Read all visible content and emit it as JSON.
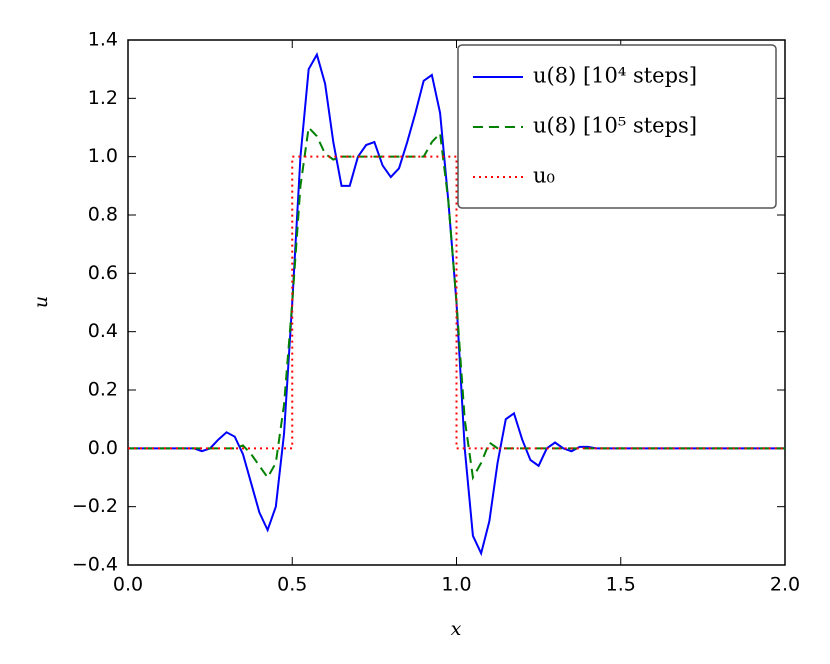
{
  "chart_data": {
    "type": "line",
    "xlabel": "x",
    "ylabel": "u",
    "x": [
      0,
      0.2,
      0.225,
      0.25,
      0.275,
      0.3,
      0.325,
      0.35,
      0.375,
      0.4,
      0.425,
      0.45,
      0.475,
      0.5,
      0.525,
      0.55,
      0.575,
      0.6,
      0.625,
      0.65,
      0.675,
      0.7,
      0.725,
      0.75,
      0.775,
      0.8,
      0.825,
      0.85,
      0.875,
      0.9,
      0.925,
      0.95,
      0.975,
      1.0,
      1.025,
      1.05,
      1.075,
      1.1,
      1.125,
      1.15,
      1.175,
      1.2,
      1.225,
      1.25,
      1.275,
      1.3,
      1.325,
      1.35,
      1.375,
      1.4,
      1.425,
      2.0
    ],
    "series": [
      {
        "name": "u(8) [10⁴  steps]",
        "color": "#0000ff",
        "linestyle": "solid",
        "values": [
          0,
          0,
          -0.01,
          0,
          0.03,
          0.055,
          0.04,
          -0.02,
          -0.12,
          -0.22,
          -0.28,
          -0.2,
          0.05,
          0.5,
          1.0,
          1.3,
          1.35,
          1.25,
          1.05,
          0.9,
          0.9,
          1.0,
          1.04,
          1.05,
          0.97,
          0.93,
          0.96,
          1.05,
          1.15,
          1.26,
          1.28,
          1.15,
          0.85,
          0.5,
          0.0,
          -0.3,
          -0.36,
          -0.25,
          -0.05,
          0.1,
          0.12,
          0.03,
          -0.04,
          -0.06,
          0.0,
          0.02,
          0.0,
          -0.01,
          0.005,
          0.005,
          0,
          0
        ]
      },
      {
        "name": "u(8) [10⁵  steps]",
        "color": "#008000",
        "linestyle": "dashed",
        "values": [
          0,
          0,
          0,
          0,
          0,
          0,
          0,
          0.01,
          -0.02,
          -0.06,
          -0.1,
          -0.05,
          0.15,
          0.5,
          0.9,
          1.1,
          1.07,
          1.01,
          0.99,
          1.0,
          1.0,
          1.0,
          1.0,
          1.0,
          1.0,
          1.0,
          1.0,
          1.0,
          1.0,
          1.0,
          1.05,
          1.08,
          0.85,
          0.5,
          0.1,
          -0.1,
          -0.05,
          0.02,
          0.0,
          0,
          0,
          0,
          0,
          0,
          0,
          0,
          0,
          0,
          0,
          0,
          0,
          0
        ]
      },
      {
        "name": "u₀",
        "color": "#ff0000",
        "linestyle": "dotted",
        "x": [
          0,
          0.5,
          0.5,
          1.0,
          1.0,
          2.0
        ],
        "values": [
          0,
          0,
          1,
          1,
          0,
          0
        ]
      }
    ],
    "xlim": [
      0,
      2
    ],
    "ylim": [
      -0.4,
      1.4
    ],
    "xticks": [
      {
        "value": 0,
        "label": "0.0"
      },
      0.5,
      {
        "value": 1,
        "label": "1.0"
      },
      1.5,
      {
        "value": 2,
        "label": "2.0"
      }
    ],
    "yticks": [
      {
        "value": -0.4,
        "label": "−0.4"
      },
      {
        "value": -0.2,
        "label": "−0.2"
      },
      {
        "value": 0,
        "label": "0.0"
      },
      0.2,
      0.4,
      0.6,
      0.8,
      {
        "value": 1,
        "label": "1.0"
      },
      1.2,
      1.4
    ],
    "grid": false,
    "legend": "upper right"
  }
}
